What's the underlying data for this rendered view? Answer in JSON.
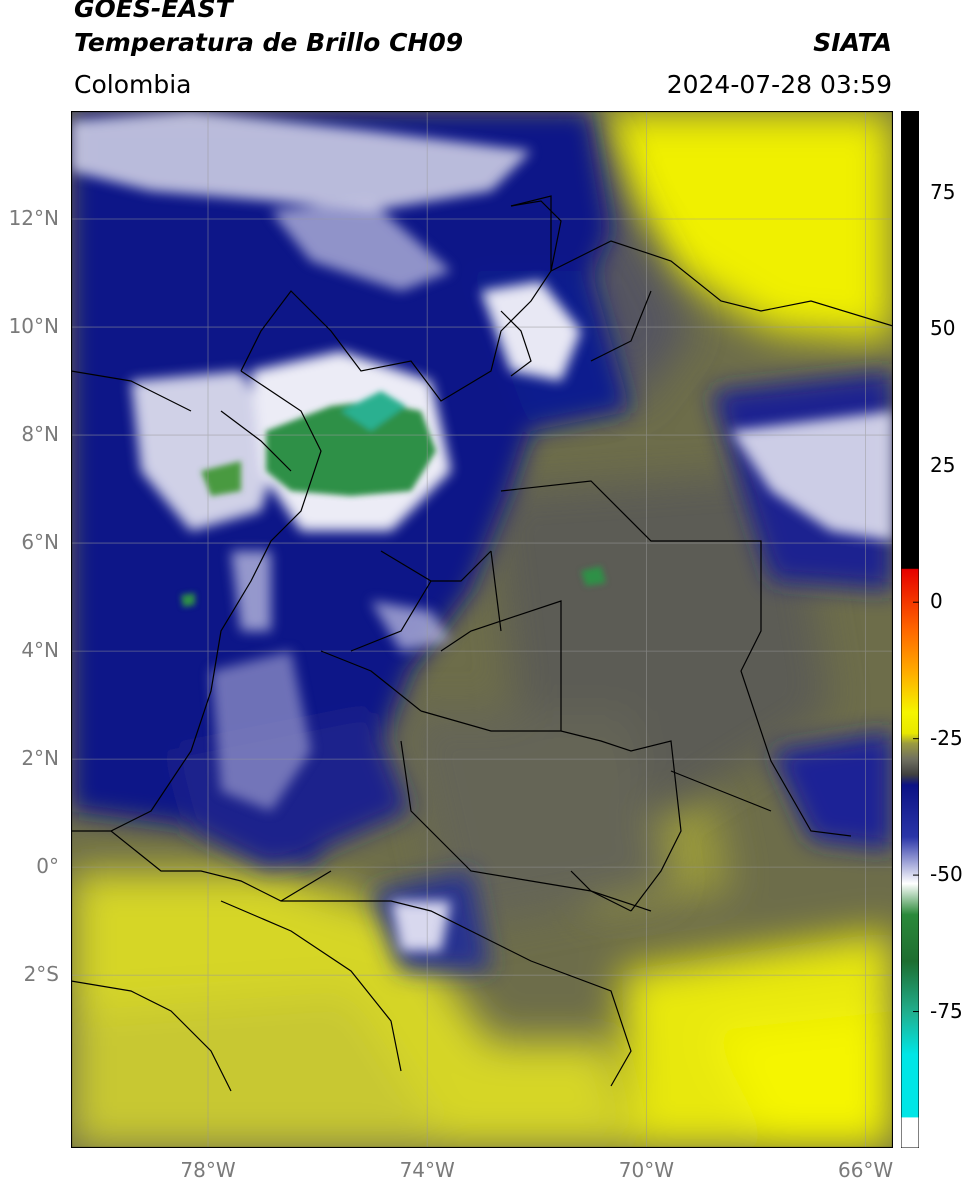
{
  "header": {
    "satellite": "GOES-EAST",
    "product": "Temperatura de Brillo CH09",
    "region": "Colombia",
    "brand": "SIATA",
    "datetime": "2024-07-28 03:59"
  },
  "map": {
    "lon_range": [
      -80.5,
      -65.5
    ],
    "lat_range": [
      -5.2,
      14.0
    ],
    "lat_ticks": [
      "12°N",
      "10°N",
      "8°N",
      "6°N",
      "4°N",
      "2°N",
      "0°",
      "2°S"
    ],
    "lat_values": [
      12,
      10,
      8,
      6,
      4,
      2,
      0,
      -2
    ],
    "lon_ticks": [
      "78°W",
      "74°W",
      "70°W",
      "66°W"
    ],
    "lon_values": [
      -78,
      -74,
      -70,
      -66
    ],
    "gridlines": true
  },
  "colorbar": {
    "ticks": [
      "75",
      "50",
      "25",
      "0",
      "-25",
      "-50",
      "-75"
    ],
    "tick_values": [
      75,
      50,
      25,
      0,
      -25,
      -50,
      -75
    ],
    "range": [
      -100,
      90
    ],
    "colors": {
      "black": "#000000",
      "red": "#e60000",
      "orange": "#ff9900",
      "yellow": "#f5f500",
      "olive": "#808040",
      "gray": "#5a5a5a",
      "navy": "#0b1285",
      "blue": "#2a35a8",
      "white": "#ffffff",
      "green": "#2b8a3a",
      "teal": "#20b090",
      "cyan": "#00e6e6"
    }
  }
}
